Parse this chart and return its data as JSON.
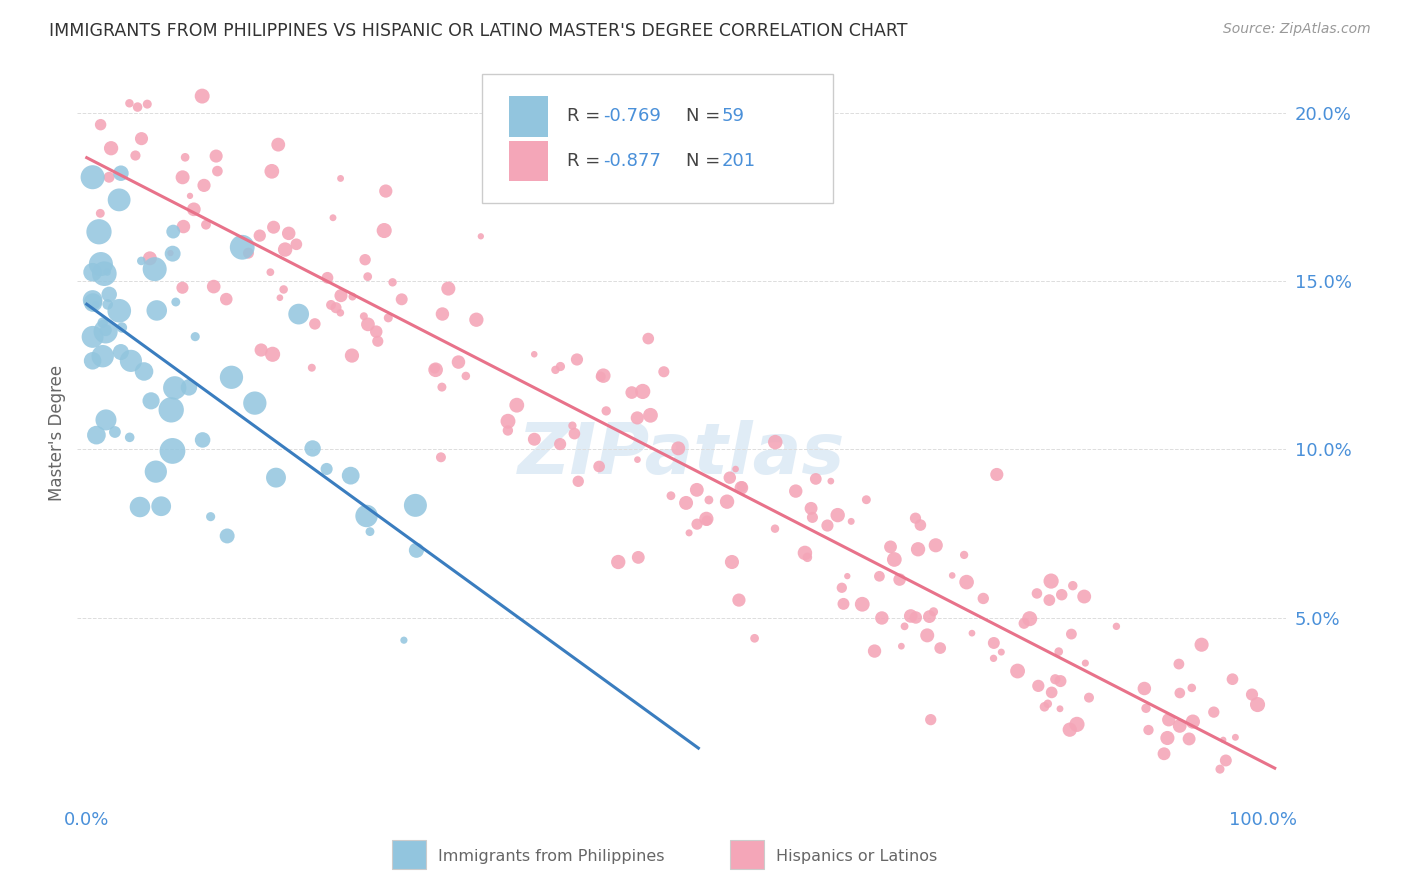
{
  "title": "IMMIGRANTS FROM PHILIPPINES VS HISPANIC OR LATINO MASTER'S DEGREE CORRELATION CHART",
  "source": "Source: ZipAtlas.com",
  "ylabel": "Master's Degree",
  "r_blue": "-0.769",
  "n_blue": "59",
  "r_pink": "-0.877",
  "n_pink": "201",
  "blue_color": "#92c5de",
  "pink_color": "#f4a6b8",
  "blue_line_color": "#3a7dbf",
  "pink_line_color": "#e8728a",
  "watermark": "ZIPatlas",
  "legend_label_blue": "Immigrants from Philippines",
  "legend_label_pink": "Hispanics or Latinos",
  "ytick_values": [
    0.05,
    0.1,
    0.15,
    0.2
  ],
  "ytick_labels": [
    "5.0%",
    "10.0%",
    "15.0%",
    "20.0%"
  ],
  "blue_text_color": "#4a90d9",
  "label_color": "#666666",
  "title_color": "#333333",
  "source_color": "#999999",
  "grid_color": "#dddddd",
  "background_color": "#ffffff",
  "legend_border_color": "#cccccc"
}
